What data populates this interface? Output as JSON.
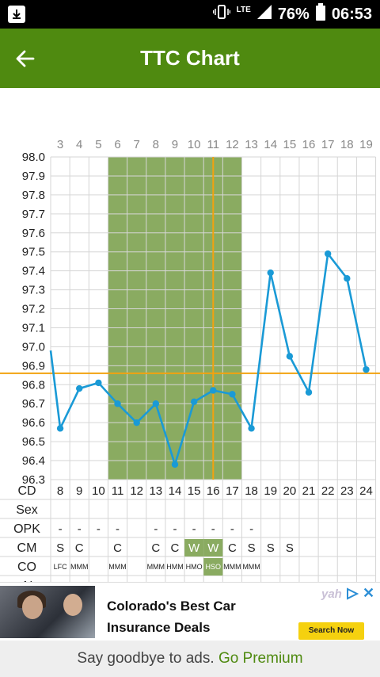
{
  "status_bar": {
    "network": "LTE",
    "battery": "76%",
    "time": "06:53"
  },
  "app_bar": {
    "title": "TTC Chart"
  },
  "chart_data": {
    "type": "line",
    "top_labels": [
      "3",
      "4",
      "5",
      "6",
      "7",
      "8",
      "9",
      "10",
      "11",
      "12",
      "13",
      "14",
      "15",
      "16",
      "17",
      "18",
      "19"
    ],
    "x": [
      "8",
      "9",
      "10",
      "11",
      "12",
      "13",
      "14",
      "15",
      "16",
      "17",
      "18",
      "19",
      "20",
      "21",
      "22",
      "23",
      "24"
    ],
    "values": [
      96.57,
      96.78,
      96.81,
      96.7,
      96.6,
      96.7,
      96.38,
      96.71,
      96.77,
      96.75,
      96.57,
      97.39,
      96.95,
      96.76,
      97.49,
      97.36,
      96.88
    ],
    "lead_in_value": 96.98,
    "ylim": [
      96.3,
      98.0
    ],
    "y_ticks": [
      "98.0",
      "97.9",
      "97.8",
      "97.7",
      "97.6",
      "97.5",
      "97.4",
      "97.3",
      "97.2",
      "97.1",
      "97.0",
      "96.9",
      "96.8",
      "96.7",
      "96.6",
      "96.5",
      "96.4",
      "96.3"
    ],
    "coverline": 96.86,
    "ovulation_day_index": 8,
    "fertile_window": [
      3,
      9
    ],
    "grid": true,
    "colors": {
      "line": "#1a9ad6",
      "fertile": "#8aab61",
      "coverline": "#f2a20f",
      "ovulation_line": "#f2a20f",
      "mucus_highlight": "#8aab61",
      "marker": "#e02020"
    },
    "rows": [
      {
        "label": "CD",
        "cells": [
          "",
          "",
          "",
          "",
          "",
          "",
          "",
          "",
          "",
          "",
          "",
          "",
          "",
          "",
          "",
          "",
          ""
        ]
      },
      {
        "label": "Sex",
        "cells": [
          "",
          "",
          "",
          "",
          "",
          "",
          "",
          "",
          "",
          "",
          "",
          "",
          "",
          "",
          "",
          "",
          ""
        ]
      },
      {
        "label": "OPK",
        "cells": [
          "-",
          "-",
          "-",
          "-",
          "",
          "-",
          "-",
          "-",
          "-",
          "-",
          "-",
          "",
          "",
          "",
          "",
          "",
          ""
        ]
      },
      {
        "label": "CM",
        "cells": [
          "S",
          "C",
          "",
          "C",
          "",
          "C",
          "C",
          "W",
          "W",
          "C",
          "S",
          "S",
          "S",
          "",
          "",
          "",
          ""
        ],
        "highlight": [
          7,
          8
        ]
      },
      {
        "label": "CO",
        "cells": [
          "LFC",
          "MMM",
          "",
          "MMM",
          "",
          "MMM",
          "HMM",
          "HMO",
          "HSO",
          "MMM",
          "MMM",
          "",
          "",
          "",
          "",
          "",
          ""
        ],
        "highlight": [
          8
        ]
      },
      {
        "label": "AI",
        "cells": [
          "",
          "",
          "",
          "",
          "",
          "",
          "",
          "●",
          "",
          "",
          "",
          "",
          "",
          "",
          "",
          "",
          ""
        ]
      }
    ]
  },
  "ad": {
    "headline": "Colorado's Best Car Insurance Deals",
    "brand": "yah",
    "cta": "Search Now",
    "close": "✕"
  },
  "premium_bar": {
    "text": "Say goodbye to ads.",
    "link": "Go Premium"
  }
}
